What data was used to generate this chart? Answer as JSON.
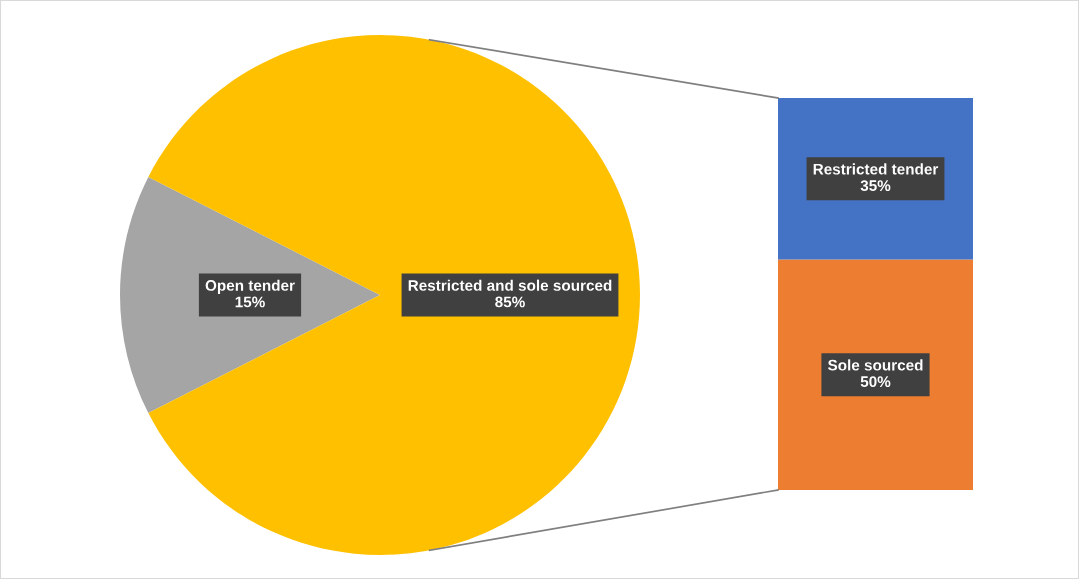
{
  "chart_data": [
    {
      "type": "pie",
      "categories": [
        "Open tender",
        "Restricted and sole sourced"
      ],
      "values": [
        15,
        85
      ],
      "colors": [
        "#a5a5a5",
        "#ffc000"
      ],
      "value_labels": [
        "15%",
        "85%"
      ]
    },
    {
      "type": "bar",
      "stacked": true,
      "categories": [
        null
      ],
      "series": [
        {
          "name": "Sole sourced",
          "color": "#ed7d31",
          "values": [
            50
          ],
          "value_labels": [
            "50%"
          ]
        },
        {
          "name": "Restricted tender",
          "color": "#4472c4",
          "values": [
            35
          ],
          "value_labels": [
            "35%"
          ]
        }
      ]
    }
  ]
}
